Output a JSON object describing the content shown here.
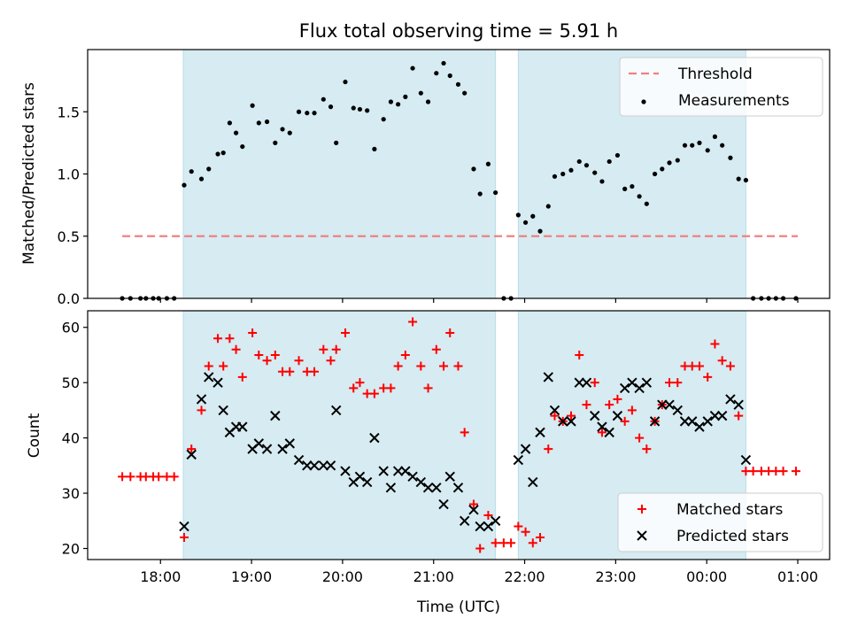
{
  "chart_data": [
    {
      "type": "scatter",
      "title": "Flux total observing time = 5.91 h",
      "xlabel": "",
      "ylabel": "Matched/Predicted stars",
      "x_unit": "hours UTC (values >= 24 are after midnight)",
      "xlim": [
        17.2,
        25.35
      ],
      "ylim": [
        0,
        2.0
      ],
      "yticks": [
        0.0,
        0.5,
        1.0,
        1.5
      ],
      "ytick_labels": [
        "0.0",
        "0.5",
        "1.0",
        "1.5"
      ],
      "xticks": [
        18,
        19,
        20,
        21,
        22,
        23,
        24,
        25
      ],
      "shaded_intervals": [
        [
          18.25,
          21.68
        ],
        [
          21.93,
          24.43
        ]
      ],
      "legend_position": "upper right",
      "series": [
        {
          "name": "Threshold",
          "kind": "dashed-line",
          "color": "#f08080",
          "x": [
            17.58,
            25.0
          ],
          "y": [
            0.5,
            0.5
          ]
        },
        {
          "name": "Measurements",
          "kind": "points",
          "color": "#000000",
          "x": [
            17.58,
            17.67,
            17.78,
            17.84,
            17.92,
            17.98,
            18.07,
            18.15,
            18.26,
            18.34,
            18.45,
            18.53,
            18.63,
            18.69,
            18.76,
            18.83,
            18.9,
            19.01,
            19.08,
            19.17,
            19.26,
            19.34,
            19.42,
            19.52,
            19.61,
            19.69,
            19.79,
            19.87,
            19.93,
            20.03,
            20.12,
            20.19,
            20.27,
            20.35,
            20.45,
            20.53,
            20.61,
            20.69,
            20.77,
            20.86,
            20.94,
            21.03,
            21.11,
            21.18,
            21.27,
            21.34,
            21.44,
            21.51,
            21.6,
            21.68,
            21.77,
            21.85,
            21.93,
            22.01,
            22.09,
            22.17,
            22.26,
            22.33,
            22.42,
            22.51,
            22.6,
            22.68,
            22.77,
            22.85,
            22.93,
            23.02,
            23.1,
            23.18,
            23.26,
            23.34,
            23.43,
            23.51,
            23.59,
            23.68,
            23.76,
            23.84,
            23.92,
            24.01,
            24.09,
            24.17,
            24.26,
            24.35,
            24.43,
            24.51,
            24.6,
            24.68,
            24.76,
            24.84,
            24.98
          ],
          "y": [
            0,
            0,
            0,
            0,
            0,
            0,
            0,
            0,
            0.91,
            1.02,
            0.96,
            1.04,
            1.16,
            1.17,
            1.41,
            1.33,
            1.22,
            1.55,
            1.41,
            1.42,
            1.25,
            1.36,
            1.33,
            1.5,
            1.49,
            1.49,
            1.6,
            1.54,
            1.25,
            1.74,
            1.53,
            1.52,
            1.51,
            1.2,
            1.44,
            1.58,
            1.56,
            1.62,
            1.85,
            1.65,
            1.58,
            1.81,
            1.89,
            1.79,
            1.72,
            1.65,
            1.04,
            0.84,
            1.08,
            0.85,
            0,
            0,
            0.67,
            0.61,
            0.66,
            0.54,
            0.74,
            0.98,
            1.0,
            1.03,
            1.1,
            1.07,
            1.01,
            0.94,
            1.1,
            1.15,
            0.88,
            0.9,
            0.82,
            0.76,
            1.0,
            1.04,
            1.09,
            1.11,
            1.23,
            1.23,
            1.25,
            1.19,
            1.3,
            1.23,
            1.13,
            0.96,
            0.95,
            0,
            0,
            0,
            0,
            0,
            0
          ]
        }
      ]
    },
    {
      "type": "scatter",
      "title": "",
      "xlabel": "Time (UTC)",
      "ylabel": "Count",
      "x_unit": "hours UTC (values >= 24 are after midnight)",
      "xlim": [
        17.2,
        25.35
      ],
      "ylim": [
        18,
        63
      ],
      "yticks": [
        20,
        30,
        40,
        50,
        60
      ],
      "ytick_labels": [
        "20",
        "30",
        "40",
        "50",
        "60"
      ],
      "xticks": [
        18,
        19,
        20,
        21,
        22,
        23,
        24,
        25
      ],
      "xtick_labels": [
        "18:00",
        "19:00",
        "20:00",
        "21:00",
        "22:00",
        "23:00",
        "00:00",
        "01:00"
      ],
      "shaded_intervals": [
        [
          18.25,
          21.68
        ],
        [
          21.93,
          24.43
        ]
      ],
      "legend_position": "lower right",
      "series": [
        {
          "name": "Matched stars",
          "kind": "plus",
          "color": "#ff0000",
          "x": [
            17.58,
            17.67,
            17.78,
            17.84,
            17.92,
            17.98,
            18.07,
            18.15,
            18.26,
            18.34,
            18.45,
            18.53,
            18.63,
            18.69,
            18.76,
            18.83,
            18.9,
            19.01,
            19.08,
            19.17,
            19.26,
            19.34,
            19.42,
            19.52,
            19.61,
            19.69,
            19.79,
            19.87,
            19.93,
            20.03,
            20.12,
            20.19,
            20.27,
            20.35,
            20.45,
            20.53,
            20.61,
            20.69,
            20.77,
            20.86,
            20.94,
            21.03,
            21.11,
            21.18,
            21.27,
            21.34,
            21.44,
            21.51,
            21.6,
            21.68,
            21.77,
            21.85,
            21.93,
            22.01,
            22.09,
            22.17,
            22.26,
            22.33,
            22.42,
            22.51,
            22.6,
            22.68,
            22.77,
            22.85,
            22.93,
            23.02,
            23.1,
            23.18,
            23.26,
            23.34,
            23.43,
            23.51,
            23.59,
            23.68,
            23.76,
            23.84,
            23.92,
            24.01,
            24.09,
            24.17,
            24.26,
            24.35,
            24.43,
            24.51,
            24.6,
            24.68,
            24.76,
            24.84,
            24.98
          ],
          "y": [
            33,
            33,
            33,
            33,
            33,
            33,
            33,
            33,
            22,
            38,
            45,
            53,
            58,
            53,
            58,
            56,
            51,
            59,
            55,
            54,
            55,
            52,
            52,
            54,
            52,
            52,
            56,
            54,
            56,
            59,
            49,
            50,
            48,
            48,
            49,
            49,
            53,
            55,
            61,
            53,
            49,
            56,
            53,
            59,
            53,
            41,
            28,
            20,
            26,
            21,
            21,
            21,
            24,
            23,
            21,
            22,
            38,
            44,
            43,
            44,
            55,
            46,
            50,
            41,
            46,
            47,
            43,
            45,
            40,
            38,
            43,
            46,
            50,
            50,
            53,
            53,
            53,
            51,
            57,
            54,
            53,
            44,
            34,
            34,
            34,
            34,
            34,
            34,
            34
          ]
        },
        {
          "name": "Predicted stars",
          "kind": "x",
          "color": "#000000",
          "x": [
            18.26,
            18.34,
            18.45,
            18.53,
            18.63,
            18.69,
            18.76,
            18.83,
            18.9,
            19.01,
            19.08,
            19.17,
            19.26,
            19.34,
            19.42,
            19.52,
            19.61,
            19.69,
            19.79,
            19.87,
            19.93,
            20.03,
            20.12,
            20.19,
            20.27,
            20.35,
            20.45,
            20.53,
            20.61,
            20.69,
            20.77,
            20.86,
            20.94,
            21.03,
            21.11,
            21.18,
            21.27,
            21.34,
            21.44,
            21.51,
            21.6,
            21.68,
            21.93,
            22.01,
            22.09,
            22.17,
            22.26,
            22.33,
            22.42,
            22.51,
            22.6,
            22.68,
            22.77,
            22.85,
            22.93,
            23.02,
            23.1,
            23.18,
            23.26,
            23.34,
            23.43,
            23.51,
            23.59,
            23.68,
            23.76,
            23.84,
            23.92,
            24.01,
            24.09,
            24.17,
            24.26,
            24.35,
            24.43
          ],
          "y": [
            24,
            37,
            47,
            51,
            50,
            45,
            41,
            42,
            42,
            38,
            39,
            38,
            44,
            38,
            39,
            36,
            35,
            35,
            35,
            35,
            45,
            34,
            32,
            33,
            32,
            40,
            34,
            31,
            34,
            34,
            33,
            32,
            31,
            31,
            28,
            33,
            31,
            25,
            27,
            24,
            24,
            25,
            36,
            38,
            32,
            41,
            51,
            45,
            43,
            43,
            50,
            50,
            44,
            42,
            41,
            44,
            49,
            50,
            49,
            50,
            43,
            46,
            46,
            45,
            43,
            43,
            42,
            43,
            44,
            44,
            47,
            46,
            36
          ]
        }
      ]
    }
  ]
}
